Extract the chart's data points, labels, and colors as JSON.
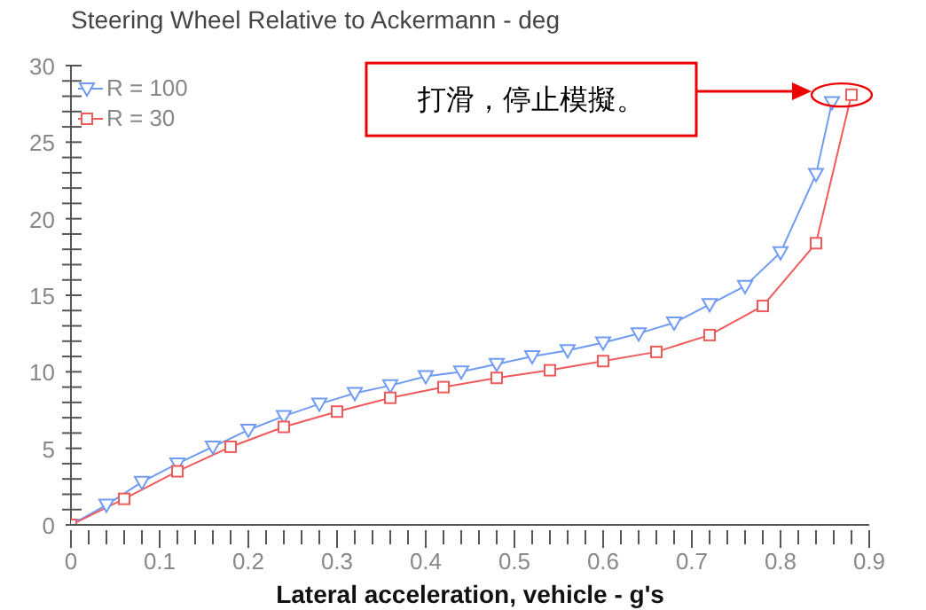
{
  "chart_data": {
    "type": "line",
    "title": "Steering Wheel Relative to Ackermann - deg",
    "xlabel": "Lateral acceleration, vehicle - g's",
    "xlim": [
      0,
      0.9
    ],
    "ylim": [
      0,
      30
    ],
    "xticks": [
      0,
      {
        "value": 0.02,
        "label": null
      },
      {
        "value": 0.04,
        "label": null
      },
      {
        "value": 0.06,
        "label": null
      },
      {
        "value": 0.08,
        "label": null
      },
      0.1,
      {
        "value": 0.12,
        "label": null
      },
      {
        "value": 0.14,
        "label": null
      },
      {
        "value": 0.16,
        "label": null
      },
      {
        "value": 0.18,
        "label": null
      },
      0.2,
      {
        "value": 0.22,
        "label": null
      },
      {
        "value": 0.24,
        "label": null
      },
      {
        "value": 0.26,
        "label": null
      },
      {
        "value": 0.28,
        "label": null
      },
      0.3,
      {
        "value": 0.32,
        "label": null
      },
      {
        "value": 0.34,
        "label": null
      },
      {
        "value": 0.36,
        "label": null
      },
      {
        "value": 0.38,
        "label": null
      },
      0.4,
      {
        "value": 0.42,
        "label": null
      },
      {
        "value": 0.44,
        "label": null
      },
      {
        "value": 0.46,
        "label": null
      },
      {
        "value": 0.48,
        "label": null
      },
      0.5,
      {
        "value": 0.52,
        "label": null
      },
      {
        "value": 0.54,
        "label": null
      },
      {
        "value": 0.56,
        "label": null
      },
      {
        "value": 0.58,
        "label": null
      },
      0.6,
      {
        "value": 0.62,
        "label": null
      },
      {
        "value": 0.64,
        "label": null
      },
      {
        "value": 0.66,
        "label": null
      },
      {
        "value": 0.68,
        "label": null
      },
      0.7,
      {
        "value": 0.72,
        "label": null
      },
      {
        "value": 0.74,
        "label": null
      },
      {
        "value": 0.76,
        "label": null
      },
      {
        "value": 0.78,
        "label": null
      },
      0.8,
      {
        "value": 0.82,
        "label": null
      },
      {
        "value": 0.84,
        "label": null
      },
      {
        "value": 0.86,
        "label": null
      },
      {
        "value": 0.88,
        "label": null
      },
      0.9
    ],
    "yticks": [
      0,
      {
        "value": 1,
        "label": null
      },
      {
        "value": 2,
        "label": null
      },
      {
        "value": 3,
        "label": null
      },
      {
        "value": 4,
        "label": null
      },
      5,
      {
        "value": 6,
        "label": null
      },
      {
        "value": 7,
        "label": null
      },
      {
        "value": 8,
        "label": null
      },
      {
        "value": 9,
        "label": null
      },
      10,
      {
        "value": 11,
        "label": null
      },
      {
        "value": 12,
        "label": null
      },
      {
        "value": 13,
        "label": null
      },
      {
        "value": 14,
        "label": null
      },
      15,
      {
        "value": 16,
        "label": null
      },
      {
        "value": 17,
        "label": null
      },
      {
        "value": 18,
        "label": null
      },
      {
        "value": 19,
        "label": null
      },
      20,
      {
        "value": 21,
        "label": null
      },
      {
        "value": 22,
        "label": null
      },
      {
        "value": 23,
        "label": null
      },
      {
        "value": 24,
        "label": null
      },
      25,
      {
        "value": 26,
        "label": null
      },
      {
        "value": 27,
        "label": null
      },
      {
        "value": 28,
        "label": null
      },
      {
        "value": 29,
        "label": null
      },
      30
    ],
    "grid": false,
    "legend": "top left",
    "series": [
      {
        "name": "R = 100",
        "color": "#6f9cf2",
        "marker": "triangle",
        "x": [
          0,
          0.04,
          0.08,
          0.12,
          0.16,
          0.2,
          0.24,
          0.28,
          0.32,
          0.36,
          0.4,
          0.44,
          0.48,
          0.52,
          0.56,
          0.6,
          0.64,
          0.68,
          0.72,
          0.76,
          0.8,
          0.84,
          0.858
        ],
        "values": [
          0,
          1.3,
          2.8,
          4.0,
          5.1,
          6.2,
          7.1,
          7.9,
          8.6,
          9.1,
          9.7,
          10.0,
          10.5,
          11.0,
          11.4,
          11.9,
          12.5,
          13.2,
          14.4,
          15.6,
          17.8,
          22.9,
          27.6
        ]
      },
      {
        "name": "R = 30",
        "color": "#f05a5a",
        "marker": "square",
        "x": [
          0,
          0.06,
          0.12,
          0.18,
          0.24,
          0.3,
          0.36,
          0.42,
          0.48,
          0.54,
          0.6,
          0.66,
          0.72,
          0.78,
          0.84,
          0.88
        ],
        "values": [
          0,
          1.7,
          3.5,
          5.1,
          6.4,
          7.4,
          8.3,
          9.0,
          9.6,
          10.1,
          10.7,
          11.3,
          12.4,
          14.3,
          18.4,
          28.1
        ]
      }
    ],
    "annotations": [
      "打滑，停止模擬。"
    ]
  }
}
